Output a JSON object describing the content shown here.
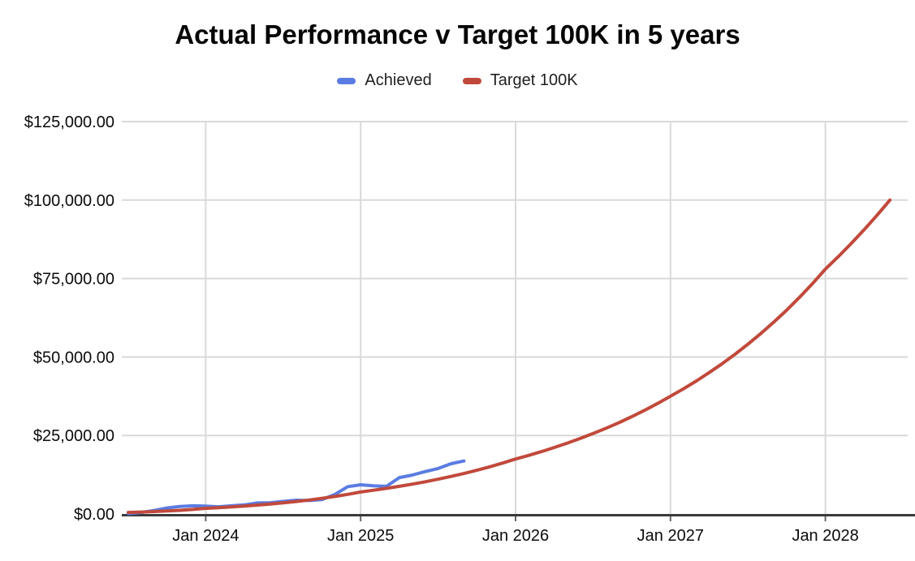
{
  "chart_data": {
    "type": "line",
    "title": "Actual Performance v Target 100K in 5 years",
    "legend_position": "top",
    "grid": true,
    "x_axis": {
      "unit": "month",
      "start": "Jul 2023",
      "end": "Jun 2028",
      "total_months": 60,
      "ticks": [
        {
          "label": "Jan 2024",
          "month": 6
        },
        {
          "label": "Jan 2025",
          "month": 18
        },
        {
          "label": "Jan 2026",
          "month": 30
        },
        {
          "label": "Jan 2027",
          "month": 42
        },
        {
          "label": "Jan 2028",
          "month": 54
        }
      ]
    },
    "y_axis": {
      "min": 0,
      "max": 125000,
      "ticks": [
        {
          "label": "$0.00",
          "value": 0
        },
        {
          "label": "$25,000.00",
          "value": 25000
        },
        {
          "label": "$50,000.00",
          "value": 50000
        },
        {
          "label": "$75,000.00",
          "value": 75000
        },
        {
          "label": "$100,000.00",
          "value": 100000
        },
        {
          "label": "$125,000.00",
          "value": 125000
        }
      ]
    },
    "series": [
      {
        "name": "Achieved",
        "color": "#5b7ce2",
        "start_month": 0,
        "values": [
          100,
          500,
          1100,
          1900,
          2400,
          2600,
          2500,
          2300,
          2600,
          2900,
          3500,
          3600,
          4000,
          4400,
          4300,
          4600,
          6200,
          8700,
          9300,
          9000,
          8800,
          11600,
          12400,
          13500,
          14500,
          16000,
          16900
        ]
      },
      {
        "name": "Target 100K",
        "color": "#c1493b",
        "start_month": 0,
        "values": [
          500,
          619,
          766,
          949,
          1175,
          1454,
          1800,
          2016,
          2257,
          2528,
          2830,
          3169,
          3549,
          3974,
          4451,
          4984,
          5581,
          6249,
          7000,
          7556,
          8156,
          8803,
          9502,
          10256,
          11070,
          11949,
          12897,
          13921,
          15026,
          16219,
          17500,
          18648,
          19871,
          21174,
          22563,
          24043,
          25620,
          27300,
          29091,
          30999,
          33032,
          35198,
          37500,
          39859,
          42366,
          45031,
          47864,
          50876,
          54077,
          57479,
          61095,
          64939,
          69025,
          73367,
          78000,
          81974,
          86150,
          90539,
          95152,
          100000
        ]
      }
    ],
    "style_colors": {
      "gridline": "#d9d9d9",
      "axis_line": "#3a3a3a",
      "tick_mark": "#666666"
    }
  }
}
